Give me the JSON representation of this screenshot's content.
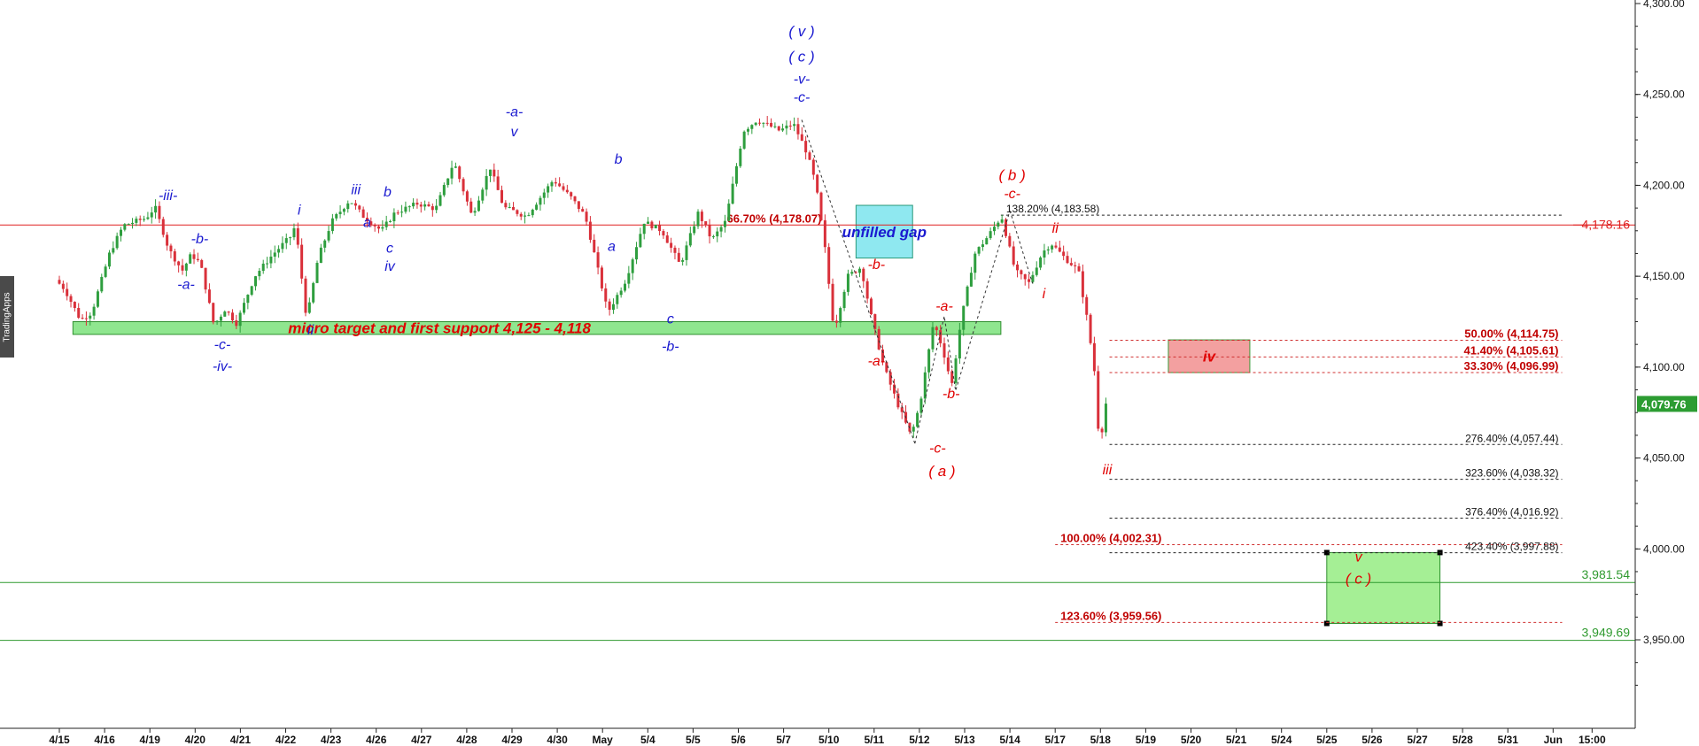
{
  "watermark": "TradingApps",
  "colors": {
    "up": "#2e9e3e",
    "down": "#d9303a",
    "wave_blue": "#1a1ad0",
    "wave_red": "#e00000",
    "fib_dark": "#111111",
    "fib_red": "#c00000",
    "support_zone": "#8fe68f",
    "gap_zone": "#8fe8f0",
    "iv_zone": "#f3a0a0",
    "target_zone": "#a5ef95",
    "line_red": "#e02020",
    "line_green": "#2f9a2f"
  },
  "chart_data": {
    "type": "candlestick",
    "y_axis": {
      "min": 3900,
      "max": 4300,
      "side": "right",
      "ticks": [
        "4,300.00",
        "4,250.00",
        "4,200.00",
        "4,150.00",
        "4,100.00",
        "4,050.00",
        "4,000.00",
        "3,950.00"
      ],
      "tick_values": [
        4300,
        4250,
        4200,
        4150,
        4100,
        4050,
        4000,
        3950
      ]
    },
    "x_axis": {
      "labels": [
        "4/15",
        "4/16",
        "4/19",
        "4/20",
        "4/21",
        "4/22",
        "4/23",
        "4/26",
        "4/27",
        "4/28",
        "4/29",
        "4/30",
        "May",
        "5/4",
        "5/5",
        "5/6",
        "5/7",
        "5/10",
        "5/11",
        "5/12",
        "5/13",
        "5/14",
        "5/17",
        "5/18",
        "5/19",
        "5/20",
        "5/21",
        "5/24",
        "5/25",
        "5/26",
        "5/27",
        "5/28",
        "5/31",
        "Jun",
        "15:00"
      ]
    },
    "price_path": [
      {
        "t": 0,
        "p": 4148
      },
      {
        "t": 0.2,
        "p": 4143
      },
      {
        "t": 0.55,
        "p": 4126
      },
      {
        "t": 0.8,
        "p": 4130
      },
      {
        "t": 1.2,
        "p": 4163
      },
      {
        "t": 1.5,
        "p": 4178
      },
      {
        "t": 2.0,
        "p": 4182
      },
      {
        "t": 2.2,
        "p": 4188
      },
      {
        "t": 2.5,
        "p": 4165
      },
      {
        "t": 2.8,
        "p": 4153
      },
      {
        "t": 3.0,
        "p": 4162
      },
      {
        "t": 3.2,
        "p": 4157
      },
      {
        "t": 3.5,
        "p": 4123
      },
      {
        "t": 3.75,
        "p": 4132
      },
      {
        "t": 4.0,
        "p": 4124
      },
      {
        "t": 4.4,
        "p": 4150
      },
      {
        "t": 4.8,
        "p": 4162
      },
      {
        "t": 5.2,
        "p": 4172
      },
      {
        "t": 5.3,
        "p": 4178
      },
      {
        "t": 5.55,
        "p": 4126
      },
      {
        "t": 5.8,
        "p": 4160
      },
      {
        "t": 6.1,
        "p": 4180
      },
      {
        "t": 6.5,
        "p": 4192
      },
      {
        "t": 6.8,
        "p": 4183
      },
      {
        "t": 7.2,
        "p": 4175
      },
      {
        "t": 7.5,
        "p": 4185
      },
      {
        "t": 8.0,
        "p": 4190
      },
      {
        "t": 8.4,
        "p": 4187
      },
      {
        "t": 8.8,
        "p": 4213
      },
      {
        "t": 9.2,
        "p": 4183
      },
      {
        "t": 9.6,
        "p": 4210
      },
      {
        "t": 9.9,
        "p": 4188
      },
      {
        "t": 10.4,
        "p": 4183
      },
      {
        "t": 10.7,
        "p": 4193
      },
      {
        "t": 11.0,
        "p": 4203
      },
      {
        "t": 11.4,
        "p": 4193
      },
      {
        "t": 11.7,
        "p": 4183
      },
      {
        "t": 11.85,
        "p": 4168
      },
      {
        "t": 12.2,
        "p": 4130
      },
      {
        "t": 12.6,
        "p": 4148
      },
      {
        "t": 13.0,
        "p": 4180
      },
      {
        "t": 13.4,
        "p": 4175
      },
      {
        "t": 13.8,
        "p": 4156
      },
      {
        "t": 14.2,
        "p": 4185
      },
      {
        "t": 14.5,
        "p": 4170
      },
      {
        "t": 14.8,
        "p": 4180
      },
      {
        "t": 15.2,
        "p": 4230
      },
      {
        "t": 15.5,
        "p": 4236
      },
      {
        "t": 16.0,
        "p": 4230
      },
      {
        "t": 16.3,
        "p": 4234
      },
      {
        "t": 16.6,
        "p": 4218
      },
      {
        "t": 16.8,
        "p": 4200
      },
      {
        "t": 17.0,
        "p": 4165
      },
      {
        "t": 17.2,
        "p": 4120
      },
      {
        "t": 17.5,
        "p": 4150
      },
      {
        "t": 17.8,
        "p": 4155
      },
      {
        "t": 18.0,
        "p": 4130
      },
      {
        "t": 18.3,
        "p": 4100
      },
      {
        "t": 18.6,
        "p": 4080
      },
      {
        "t": 18.9,
        "p": 4062
      },
      {
        "t": 19.1,
        "p": 4080
      },
      {
        "t": 19.4,
        "p": 4125
      },
      {
        "t": 19.6,
        "p": 4110
      },
      {
        "t": 19.8,
        "p": 4090
      },
      {
        "t": 20.0,
        "p": 4125
      },
      {
        "t": 20.3,
        "p": 4162
      },
      {
        "t": 20.6,
        "p": 4172
      },
      {
        "t": 20.9,
        "p": 4183
      },
      {
        "t": 21.2,
        "p": 4153
      },
      {
        "t": 21.5,
        "p": 4146
      },
      {
        "t": 21.8,
        "p": 4163
      },
      {
        "t": 22.0,
        "p": 4168
      },
      {
        "t": 22.3,
        "p": 4160
      },
      {
        "t": 22.6,
        "p": 4153
      },
      {
        "t": 22.8,
        "p": 4125
      },
      {
        "t": 22.95,
        "p": 4098
      },
      {
        "t": 23.0,
        "p": 4070
      },
      {
        "t": 23.1,
        "p": 4062
      },
      {
        "t": 23.2,
        "p": 4080
      }
    ],
    "last_price": "4,079.76",
    "horizontal_lines": [
      {
        "value": 4178.16,
        "label": "4,178.16",
        "color": "red",
        "from_t": 0
      },
      {
        "value": 3981.54,
        "label": "3,981.54",
        "color": "green",
        "from_t": 0
      },
      {
        "value": 3949.69,
        "label": "3,949.69",
        "color": "green",
        "from_t": 0
      }
    ],
    "zones": [
      {
        "name": "support",
        "t0": 0.3,
        "t1": 20.8,
        "p_top": 4125,
        "p_bottom": 4118,
        "label": "micro target and first support  4,125 - 4,118",
        "color": "#8fe68f"
      },
      {
        "name": "gap",
        "t0": 17.6,
        "t1": 18.85,
        "p_top": 4189,
        "p_bottom": 4160,
        "label": "unfilled gap",
        "color": "#8fe8f0"
      },
      {
        "name": "iv-box",
        "t0": 24.5,
        "t1": 26.3,
        "p_top": 4115,
        "p_bottom": 4097,
        "label": "iv",
        "color": "#f3a0a0"
      },
      {
        "name": "target-box",
        "t0": 28.0,
        "t1": 30.5,
        "p_top": 3998,
        "p_bottom": 3959,
        "label": "",
        "color": "#a5ef95"
      }
    ],
    "fib_levels": [
      {
        "value": 4183.58,
        "label": "138.20% (4,183.58)",
        "t0": 20.8,
        "t1": 33.2,
        "color": "dark",
        "label_side": "left"
      },
      {
        "value": 4178.07,
        "label": "66.70% (4,178.07)",
        "t0": 16.8,
        "t1": 16.8,
        "color": "red",
        "label_side": "none"
      },
      {
        "value": 4114.75,
        "label": "50.00% (4,114.75)",
        "t0": 23.2,
        "t1": 33.2,
        "color": "red",
        "label_side": "right"
      },
      {
        "value": 4105.61,
        "label": "41.40% (4,105.61)",
        "t0": 23.2,
        "t1": 33.2,
        "color": "red",
        "label_side": "right"
      },
      {
        "value": 4096.99,
        "label": "33.30% (4,096.99)",
        "t0": 23.2,
        "t1": 33.2,
        "color": "red",
        "label_side": "right"
      },
      {
        "value": 4057.44,
        "label": "276.40% (4,057.44)",
        "t0": 23.2,
        "t1": 33.2,
        "color": "dark",
        "label_side": "right"
      },
      {
        "value": 4038.32,
        "label": "323.60% (4,038.32)",
        "t0": 23.2,
        "t1": 33.2,
        "color": "dark",
        "label_side": "right"
      },
      {
        "value": 4016.92,
        "label": "376.40% (4,016.92)",
        "t0": 23.2,
        "t1": 33.2,
        "color": "dark",
        "label_side": "right"
      },
      {
        "value": 4002.31,
        "label": "100.00% (4,002.31)",
        "t0": 22.0,
        "t1": 33.2,
        "color": "red",
        "label_side": "left"
      },
      {
        "value": 3997.88,
        "label": "423.40% (3,997.88)",
        "t0": 23.2,
        "t1": 33.2,
        "color": "dark",
        "label_side": "right"
      },
      {
        "value": 3959.56,
        "label": "123.60% (3,959.56)",
        "t0": 22.0,
        "t1": 33.2,
        "color": "red",
        "label_side": "left"
      }
    ],
    "wave_labels": [
      {
        "text": "( v )",
        "t": 16.4,
        "p": 4282,
        "color": "blue",
        "size": 17
      },
      {
        "text": "( c )",
        "t": 16.4,
        "p": 4268,
        "color": "blue",
        "size": 17
      },
      {
        "text": "-v-",
        "t": 16.4,
        "p": 4256,
        "color": "blue",
        "size": 16
      },
      {
        "text": "-c-",
        "t": 16.4,
        "p": 4246,
        "color": "blue",
        "size": 16
      },
      {
        "text": "-iii-",
        "t": 2.4,
        "p": 4192,
        "color": "blue",
        "size": 16
      },
      {
        "text": "-b-",
        "t": 3.1,
        "p": 4168,
        "color": "blue",
        "size": 16
      },
      {
        "text": "-a-",
        "t": 2.8,
        "p": 4143,
        "color": "blue",
        "size": 16
      },
      {
        "text": "-c-",
        "t": 3.6,
        "p": 4110,
        "color": "blue",
        "size": 16
      },
      {
        "text": "-iv-",
        "t": 3.6,
        "p": 4098,
        "color": "blue",
        "size": 16
      },
      {
        "text": "i",
        "t": 5.3,
        "p": 4184,
        "color": "blue",
        "size": 16
      },
      {
        "text": "ii",
        "t": 5.55,
        "p": 4118,
        "color": "blue",
        "size": 16
      },
      {
        "text": "iii",
        "t": 6.55,
        "p": 4195,
        "color": "blue",
        "size": 16
      },
      {
        "text": "a",
        "t": 6.8,
        "p": 4177,
        "color": "blue",
        "size": 16
      },
      {
        "text": "b",
        "t": 7.25,
        "p": 4194,
        "color": "blue",
        "size": 16
      },
      {
        "text": "c",
        "t": 7.3,
        "p": 4163,
        "color": "blue",
        "size": 16
      },
      {
        "text": "iv",
        "t": 7.3,
        "p": 4153,
        "color": "blue",
        "size": 16
      },
      {
        "text": "-a-",
        "t": 10.05,
        "p": 4238,
        "color": "blue",
        "size": 16
      },
      {
        "text": "v",
        "t": 10.05,
        "p": 4227,
        "color": "blue",
        "size": 16
      },
      {
        "text": "a",
        "t": 12.2,
        "p": 4164,
        "color": "blue",
        "size": 16
      },
      {
        "text": "b",
        "t": 12.35,
        "p": 4212,
        "color": "blue",
        "size": 16
      },
      {
        "text": "c",
        "t": 13.5,
        "p": 4124,
        "color": "blue",
        "size": 16
      },
      {
        "text": "-b-",
        "t": 13.5,
        "p": 4109,
        "color": "blue",
        "size": 16
      },
      {
        "text": "( b )",
        "t": 21.05,
        "p": 4203,
        "color": "red",
        "size": 17
      },
      {
        "text": "-c-",
        "t": 21.05,
        "p": 4193,
        "color": "red",
        "size": 16
      },
      {
        "text": "-b-",
        "t": 18.05,
        "p": 4154,
        "color": "red",
        "size": 16
      },
      {
        "text": "-a-",
        "t": 18.05,
        "p": 4101,
        "color": "red",
        "size": 16
      },
      {
        "text": "-a-",
        "t": 19.55,
        "p": 4131,
        "color": "red",
        "size": 16
      },
      {
        "text": "-b-",
        "t": 19.7,
        "p": 4083,
        "color": "red",
        "size": 16
      },
      {
        "text": "-c-",
        "t": 19.4,
        "p": 4053,
        "color": "red",
        "size": 16
      },
      {
        "text": "( a )",
        "t": 19.5,
        "p": 4040,
        "color": "red",
        "size": 17
      },
      {
        "text": "ii",
        "t": 22.0,
        "p": 4174,
        "color": "red",
        "size": 16
      },
      {
        "text": "i",
        "t": 21.75,
        "p": 4138,
        "color": "red",
        "size": 16
      },
      {
        "text": "iii",
        "t": 23.15,
        "p": 4041,
        "color": "red",
        "size": 16
      },
      {
        "text": "v",
        "t": 28.7,
        "p": 3993,
        "color": "red",
        "size": 16
      },
      {
        "text": "( c )",
        "t": 28.7,
        "p": 3981,
        "color": "red",
        "size": 17
      }
    ],
    "projection_lines": [
      {
        "points": [
          {
            "t": 16.4,
            "p": 4236
          },
          {
            "t": 18.9,
            "p": 4058
          }
        ],
        "style": "dotted"
      },
      {
        "points": [
          {
            "t": 18.9,
            "p": 4058
          },
          {
            "t": 19.55,
            "p": 4128
          },
          {
            "t": 19.8,
            "p": 4087
          },
          {
            "t": 21.0,
            "p": 4186
          }
        ],
        "style": "dotted"
      },
      {
        "points": [
          {
            "t": 21.0,
            "p": 4186
          },
          {
            "t": 21.5,
            "p": 4146
          }
        ],
        "style": "dotted"
      }
    ]
  }
}
